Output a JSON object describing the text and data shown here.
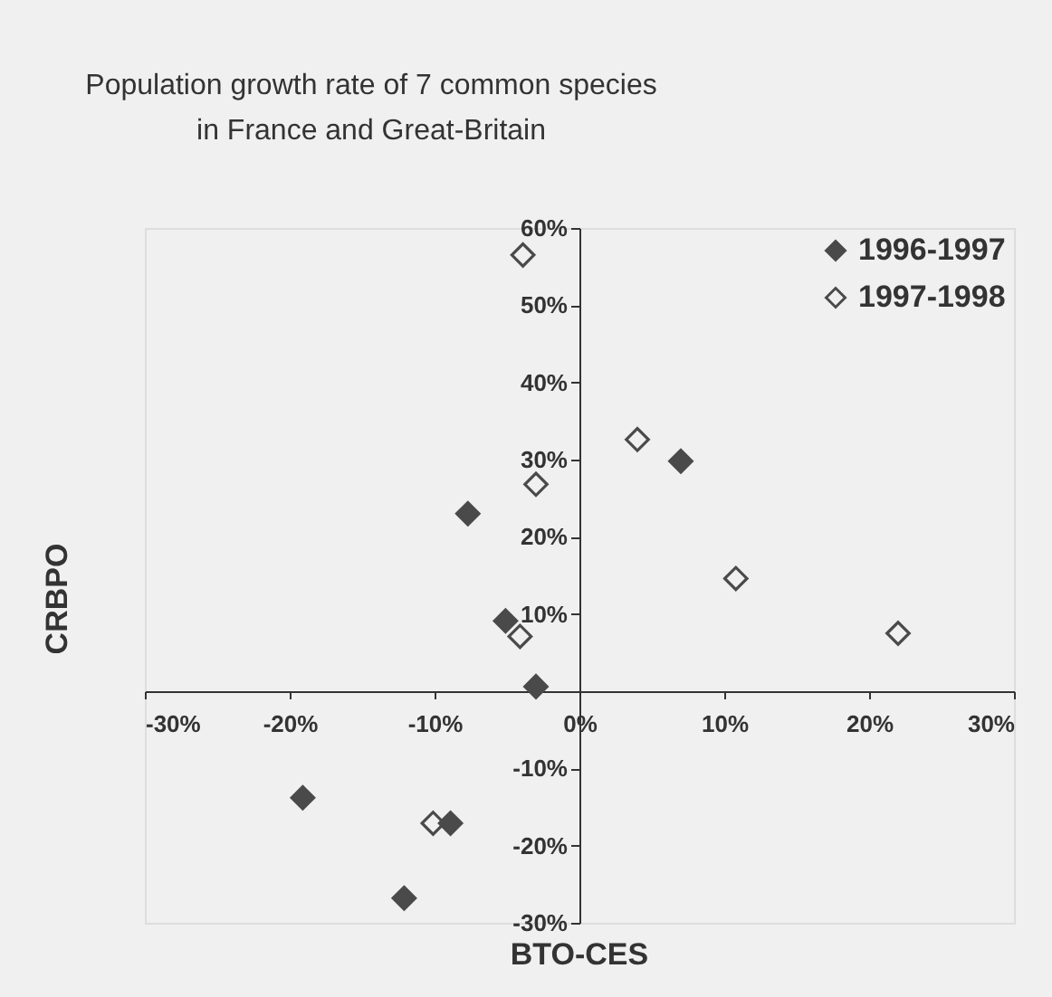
{
  "chart_data": {
    "type": "scatter",
    "title": "Population growth rate of 7 common species\nin France and Great-Britain",
    "xlabel": "BTO-CES",
    "ylabel": "CRBPO",
    "marker": "diamond",
    "legend": "top right",
    "grid": false,
    "xlim": [
      -30,
      30
    ],
    "ylim": [
      -30,
      60
    ],
    "xticks": [
      {
        "value": -30,
        "label": "-30%"
      },
      {
        "value": -20,
        "label": "-20%"
      },
      {
        "value": -10,
        "label": "-10%"
      },
      {
        "value": 0,
        "label": "0%"
      },
      {
        "value": 10,
        "label": "10%"
      },
      {
        "value": 20,
        "label": "20%"
      },
      {
        "value": 30,
        "label": "30%"
      }
    ],
    "yticks": [
      {
        "value": -30,
        "label": "-30%"
      },
      {
        "value": -20,
        "label": "-20%"
      },
      {
        "value": -10,
        "label": "-10%"
      },
      {
        "value": 10,
        "label": "10%"
      },
      {
        "value": 20,
        "label": "20%"
      },
      {
        "value": 30,
        "label": "30%"
      },
      {
        "value": 40,
        "label": "40%"
      },
      {
        "value": 50,
        "label": "50%"
      },
      {
        "value": 60,
        "label": "60%"
      }
    ],
    "series": [
      {
        "name": "1996-1997",
        "color": "#4a4a4a",
        "x": [
          -7.7,
          -5.1,
          -3.0,
          7.0,
          -19.1,
          -8.9,
          -12.1
        ],
        "values": [
          23.0,
          9.1,
          0.6,
          29.8,
          -13.8,
          -17.1,
          -26.8
        ]
      },
      {
        "name": "1997-1998",
        "color": "#4a4a4a",
        "x": [
          -3.9,
          -3.0,
          -4.1,
          4.0,
          10.8,
          22.0,
          -10.1
        ],
        "values": [
          56.5,
          26.8,
          7.1,
          32.6,
          14.6,
          7.5,
          -17.1
        ]
      }
    ]
  }
}
